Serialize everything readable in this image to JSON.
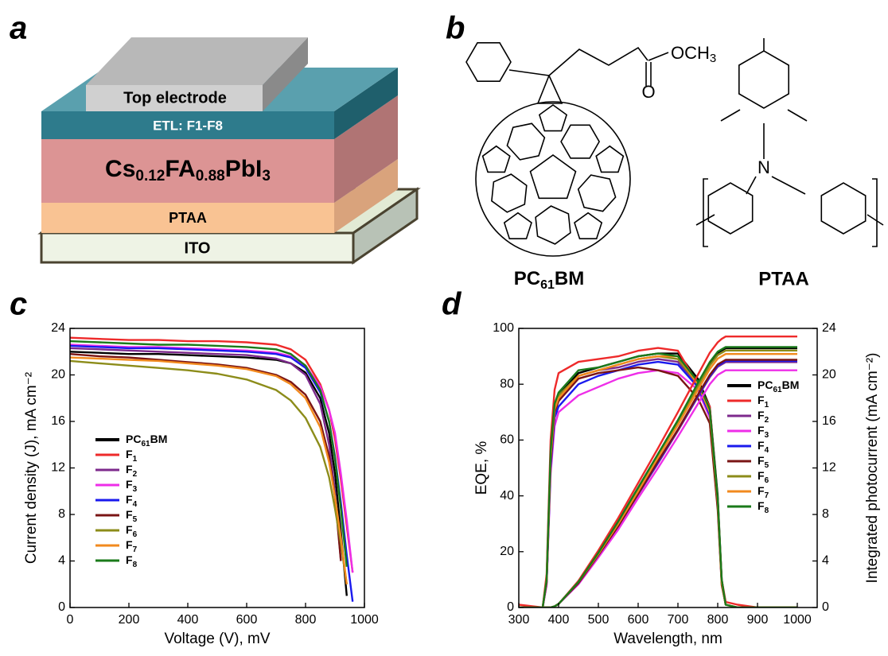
{
  "panel_labels": [
    "a",
    "b",
    "c",
    "d"
  ],
  "diagram": {
    "top_electrode": "Top electrode",
    "etl": "ETL: F1-F8",
    "perovskite": [
      "Cs",
      "0.12",
      "FA",
      "0.88",
      "PbI",
      "3"
    ],
    "htl": "PTAA",
    "substrate": "ITO"
  },
  "structures": {
    "ester_group": [
      "OCH",
      "3"
    ],
    "carbonyl_o": "O",
    "nitrogen": "N",
    "pcbm_label": [
      "PC",
      "61",
      "BM"
    ],
    "ptaa_label": "PTAA"
  },
  "chart_data": [
    {
      "type": "line",
      "x_label": "Voltage (V), mV",
      "y_label": "Current density (J), mA cm⁻²",
      "x": [
        0,
        100,
        200,
        300,
        400,
        500,
        600,
        700,
        750,
        800,
        850,
        880,
        900,
        920,
        940,
        960,
        980
      ],
      "xlim": [
        0,
        1000
      ],
      "xticks": [
        0,
        200,
        400,
        600,
        800,
        1000
      ],
      "ylim": [
        0,
        24
      ],
      "yticks": [
        0,
        4,
        8,
        12,
        16,
        20,
        24
      ],
      "legend": "center-left",
      "series": [
        {
          "name": "PC61BM",
          "color": "#000000",
          "values": [
            22.0,
            21.9,
            21.8,
            21.8,
            21.7,
            21.6,
            21.5,
            21.3,
            21.0,
            20.2,
            18.0,
            15.0,
            11.5,
            6.5,
            1.0,
            null,
            null
          ]
        },
        {
          "name": "F1",
          "color": "#ee2a2a",
          "values": [
            23.2,
            23.1,
            23.0,
            23.0,
            22.9,
            22.9,
            22.8,
            22.6,
            22.2,
            21.3,
            19.2,
            17.0,
            14.5,
            11.0,
            7.0,
            3.0,
            null
          ]
        },
        {
          "name": "F2",
          "color": "#7d2a8c",
          "values": [
            22.3,
            22.2,
            22.1,
            22.0,
            21.9,
            21.8,
            21.7,
            21.4,
            21.0,
            20.0,
            17.5,
            14.0,
            10.0,
            4.0,
            null,
            null,
            null
          ]
        },
        {
          "name": "F3",
          "color": "#ee2ee8",
          "values": [
            22.6,
            22.5,
            22.4,
            22.4,
            22.3,
            22.2,
            22.1,
            21.9,
            21.6,
            20.8,
            19.0,
            17.0,
            15.0,
            11.5,
            7.5,
            3.0,
            null
          ]
        },
        {
          "name": "F4",
          "color": "#1a1aee",
          "values": [
            22.5,
            22.4,
            22.3,
            22.3,
            22.2,
            22.1,
            22.0,
            21.8,
            21.5,
            20.6,
            18.5,
            16.0,
            13.0,
            9.0,
            4.5,
            0.5,
            null
          ]
        },
        {
          "name": "F5",
          "color": "#7a1414",
          "values": [
            21.8,
            21.6,
            21.5,
            21.3,
            21.1,
            20.9,
            20.6,
            20.0,
            19.4,
            18.3,
            16.0,
            13.0,
            9.5,
            4.0,
            null,
            null,
            null
          ]
        },
        {
          "name": "F6",
          "color": "#8c8c1a",
          "values": [
            21.2,
            21.0,
            20.8,
            20.6,
            20.4,
            20.1,
            19.6,
            18.7,
            17.8,
            16.3,
            13.8,
            11.2,
            8.5,
            5.5,
            2.0,
            null,
            null
          ]
        },
        {
          "name": "F7",
          "color": "#f28a1e",
          "values": [
            21.5,
            21.4,
            21.3,
            21.2,
            21.0,
            20.8,
            20.5,
            19.9,
            19.2,
            18.0,
            15.5,
            12.5,
            9.5,
            6.0,
            2.0,
            null,
            null
          ]
        },
        {
          "name": "F8",
          "color": "#1a7a1a",
          "values": [
            22.9,
            22.8,
            22.7,
            22.6,
            22.6,
            22.5,
            22.4,
            22.2,
            21.8,
            20.8,
            18.7,
            16.0,
            12.8,
            8.5,
            3.5,
            null,
            null
          ]
        }
      ]
    },
    {
      "type": "line",
      "x_label": "Wavelength, nm",
      "y_label": "EQE, %",
      "y2_label": "Integrated photocurrent (mA cm⁻²)",
      "x": [
        300,
        360,
        370,
        380,
        390,
        400,
        450,
        500,
        550,
        600,
        650,
        700,
        750,
        780,
        800,
        810,
        820,
        850,
        900,
        1000
      ],
      "xlim": [
        300,
        1050
      ],
      "xticks": [
        300,
        400,
        500,
        600,
        700,
        800,
        900,
        1000
      ],
      "ylim": [
        0,
        100
      ],
      "yticks": [
        0,
        20,
        40,
        60,
        80,
        100
      ],
      "y2lim": [
        0,
        24
      ],
      "y2ticks": [
        0,
        4,
        8,
        12,
        16,
        20,
        24
      ],
      "legend": "right",
      "series": [
        {
          "name": "PC61BM",
          "color": "#000000",
          "values": [
            0,
            0,
            10,
            55,
            72,
            76,
            84,
            86,
            88,
            90,
            91,
            91,
            82,
            72,
            40,
            10,
            1,
            0,
            0,
            0
          ]
        },
        {
          "name": "F1",
          "color": "#ee2a2a",
          "values": [
            1,
            0,
            12,
            60,
            78,
            84,
            88,
            89,
            90,
            92,
            93,
            92,
            80,
            72,
            38,
            10,
            2,
            1,
            0,
            0
          ]
        },
        {
          "name": "F2",
          "color": "#7d2a8c",
          "values": [
            0,
            0,
            9,
            52,
            70,
            74,
            83,
            85,
            86,
            88,
            89,
            88,
            80,
            70,
            38,
            9,
            1,
            0,
            0,
            0
          ]
        },
        {
          "name": "F3",
          "color": "#ee2ee8",
          "values": [
            0,
            0,
            8,
            48,
            65,
            70,
            76,
            79,
            82,
            84,
            85,
            84,
            78,
            68,
            36,
            9,
            1,
            0,
            0,
            0
          ]
        },
        {
          "name": "F4",
          "color": "#1a1aee",
          "values": [
            0,
            0,
            9,
            50,
            68,
            72,
            80,
            83,
            85,
            87,
            88,
            87,
            79,
            69,
            37,
            9,
            1,
            0,
            0,
            0
          ]
        },
        {
          "name": "F5",
          "color": "#7a1414",
          "values": [
            0,
            0,
            9,
            52,
            70,
            74,
            82,
            84,
            85,
            86,
            85,
            83,
            75,
            66,
            35,
            8,
            1,
            0,
            0,
            0
          ]
        },
        {
          "name": "F6",
          "color": "#8c8c1a",
          "values": [
            0,
            0,
            10,
            54,
            72,
            76,
            83,
            85,
            87,
            89,
            90,
            89,
            80,
            70,
            38,
            9,
            1,
            0,
            0,
            0
          ]
        },
        {
          "name": "F7",
          "color": "#f28a1e",
          "values": [
            0,
            0,
            10,
            54,
            71,
            75,
            83,
            85,
            87,
            89,
            90,
            90,
            80,
            70,
            38,
            9,
            1,
            0,
            0,
            0
          ]
        },
        {
          "name": "F8",
          "color": "#1a7a1a",
          "values": [
            0,
            0,
            10,
            56,
            73,
            77,
            85,
            86,
            88,
            90,
            91,
            90,
            81,
            71,
            39,
            10,
            1,
            0,
            0,
            0
          ]
        },
        {
          "color": "#000000",
          "axis": "y2",
          "values": [
            0,
            0,
            0,
            0,
            0.1,
            0.3,
            2.2,
            4.7,
            7.4,
            10.3,
            13.2,
            16.1,
            19.2,
            21.0,
            21.9,
            22.1,
            22.3,
            22.3,
            22.3,
            22.3
          ]
        },
        {
          "color": "#ee2a2a",
          "axis": "y2",
          "values": [
            0,
            0,
            0,
            0,
            0.1,
            0.3,
            2.3,
            4.9,
            7.7,
            10.7,
            13.7,
            16.8,
            20.0,
            21.9,
            22.8,
            23.1,
            23.3,
            23.3,
            23.3,
            23.3
          ]
        },
        {
          "color": "#7d2a8c",
          "axis": "y2",
          "values": [
            0,
            0,
            0,
            0,
            0.1,
            0.3,
            2.1,
            4.4,
            7.0,
            9.7,
            12.4,
            15.2,
            18.1,
            19.8,
            20.7,
            20.9,
            21.1,
            21.1,
            21.1,
            21.1
          ]
        },
        {
          "color": "#ee2ee8",
          "axis": "y2",
          "values": [
            0,
            0,
            0,
            0,
            0.1,
            0.3,
            2.0,
            4.3,
            6.7,
            9.4,
            12.0,
            14.7,
            17.5,
            19.2,
            20.0,
            20.2,
            20.4,
            20.4,
            20.4,
            20.4
          ]
        },
        {
          "color": "#1a1aee",
          "axis": "y2",
          "values": [
            0,
            0,
            0,
            0,
            0.1,
            0.3,
            2.1,
            4.5,
            7.0,
            9.8,
            12.5,
            15.3,
            18.2,
            19.9,
            20.8,
            21.0,
            21.2,
            21.2,
            21.2,
            21.2
          ]
        },
        {
          "color": "#7a1414",
          "axis": "y2",
          "values": [
            0,
            0,
            0,
            0,
            0.1,
            0.3,
            2.1,
            4.5,
            7.0,
            9.8,
            12.6,
            15.3,
            18.3,
            20.0,
            20.9,
            21.1,
            21.3,
            21.3,
            21.3,
            21.3
          ]
        },
        {
          "color": "#8c8c1a",
          "axis": "y2",
          "values": [
            0,
            0,
            0,
            0,
            0.1,
            0.3,
            2.2,
            4.6,
            7.3,
            10.2,
            13.0,
            15.9,
            19.0,
            20.8,
            21.7,
            21.9,
            22.1,
            22.1,
            22.1,
            22.1
          ]
        },
        {
          "color": "#f28a1e",
          "axis": "y2",
          "values": [
            0,
            0,
            0,
            0,
            0.1,
            0.3,
            2.2,
            4.6,
            7.2,
            10.0,
            12.9,
            15.7,
            18.7,
            20.5,
            21.4,
            21.6,
            21.8,
            21.8,
            21.8,
            21.8
          ]
        },
        {
          "color": "#1a7a1a",
          "axis": "y2",
          "values": [
            0,
            0,
            0,
            0,
            0.1,
            0.3,
            2.2,
            4.7,
            7.4,
            10.3,
            13.2,
            16.1,
            19.3,
            21.1,
            22.0,
            22.2,
            22.4,
            22.4,
            22.4,
            22.4
          ]
        }
      ]
    }
  ]
}
